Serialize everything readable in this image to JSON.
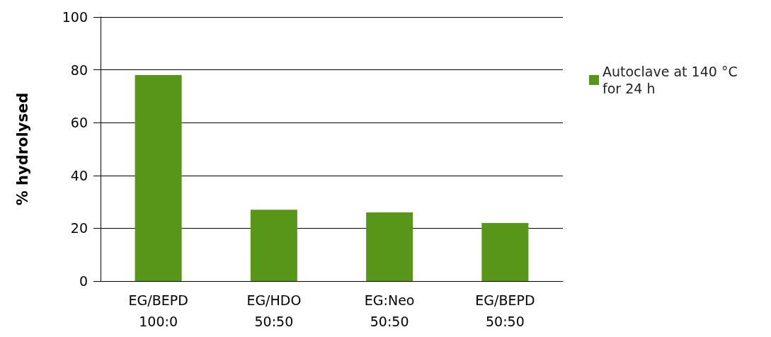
{
  "chart_data": {
    "type": "bar",
    "ylabel": "% hydrolysed",
    "categories": [
      "EG/BEPD\n100:0",
      "EG/HDO\n50:50",
      "EG:Neo\n50:50",
      "EG/BEPD\n50:50"
    ],
    "series": [
      {
        "name": "Autoclave at 140 °C for 24 h",
        "color": "#579619",
        "values": [
          78,
          27,
          26,
          22
        ]
      }
    ],
    "ylim": [
      0,
      100
    ],
    "yticks": [
      0,
      20,
      40,
      60,
      80,
      100
    ],
    "grid": true,
    "legend": "top right"
  }
}
